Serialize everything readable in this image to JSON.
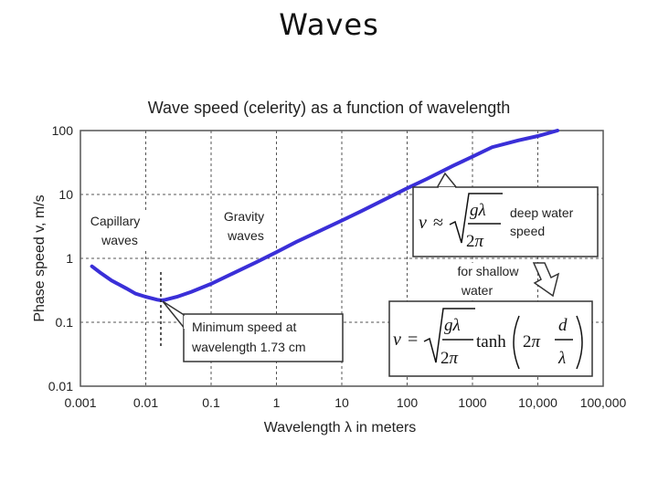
{
  "slide": {
    "title": "Waves"
  },
  "chart_data": {
    "type": "line",
    "title": "Wave speed (celerity) as a function of wavelength",
    "xlabel": "Wavelength λ in meters",
    "ylabel": "Phase speed v, m/s",
    "xscale": "log",
    "yscale": "log",
    "xlim": [
      0.001,
      100000
    ],
    "ylim": [
      0.01,
      100
    ],
    "grid": true,
    "x_ticks": [
      "0.001",
      "0.01",
      "0.1",
      "1",
      "10",
      "100",
      "1000",
      "10,000",
      "100,000"
    ],
    "y_ticks": [
      "100",
      "10",
      "1",
      "0.1",
      "0.01"
    ],
    "series_color": "#3a2fd8",
    "series": [
      {
        "x": [
          0.0015,
          0.002,
          0.003,
          0.005,
          0.007,
          0.01,
          0.015,
          0.0173,
          0.02,
          0.03,
          0.05,
          0.1,
          0.2,
          0.5,
          1,
          2,
          5,
          10,
          20,
          50,
          100,
          200,
          500,
          1000,
          2000,
          5000,
          10000,
          20000
        ],
        "y": [
          0.75,
          0.6,
          0.45,
          0.34,
          0.28,
          0.25,
          0.225,
          0.22,
          0.225,
          0.25,
          0.3,
          0.4,
          0.56,
          0.88,
          1.25,
          1.8,
          2.8,
          3.9,
          5.5,
          8.8,
          12.5,
          17.5,
          28,
          39,
          55,
          70,
          82,
          100
        ]
      }
    ],
    "annotations": {
      "capillary": [
        "Capillary",
        "waves"
      ],
      "gravity": [
        "Gravity",
        "waves"
      ],
      "minimum": [
        "Minimum speed at",
        "wavelength 1.73 cm"
      ],
      "deep_label": [
        "deep water",
        "speed"
      ],
      "shallow_label": [
        "for shallow",
        "water"
      ]
    }
  }
}
